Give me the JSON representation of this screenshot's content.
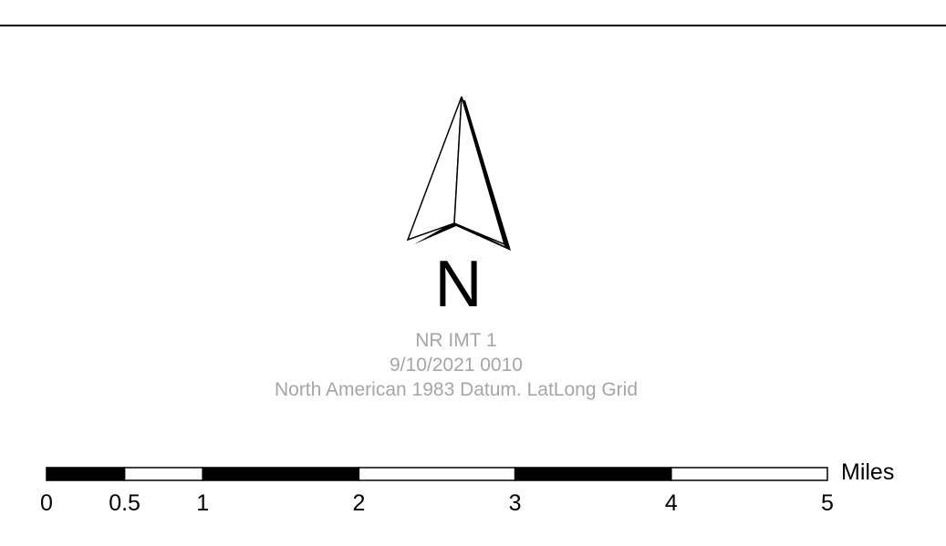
{
  "north_arrow": {
    "letter": "N"
  },
  "map_info": {
    "title": "NR IMT 1",
    "datetime": "9/10/2021 0010",
    "datum": "North American 1983 Datum. LatLong Grid",
    "text_color": "#a6a6a6"
  },
  "scale_bar": {
    "unit": "Miles",
    "ticks": [
      {
        "value": 0,
        "label": "0"
      },
      {
        "value": 0.5,
        "label": "0.5"
      },
      {
        "value": 1,
        "label": "1"
      },
      {
        "value": 2,
        "label": "2"
      },
      {
        "value": 3,
        "label": "3"
      },
      {
        "value": 4,
        "label": "4"
      },
      {
        "value": 5,
        "label": "5"
      }
    ],
    "fill_colors": [
      "#000000",
      "#ffffff"
    ]
  }
}
